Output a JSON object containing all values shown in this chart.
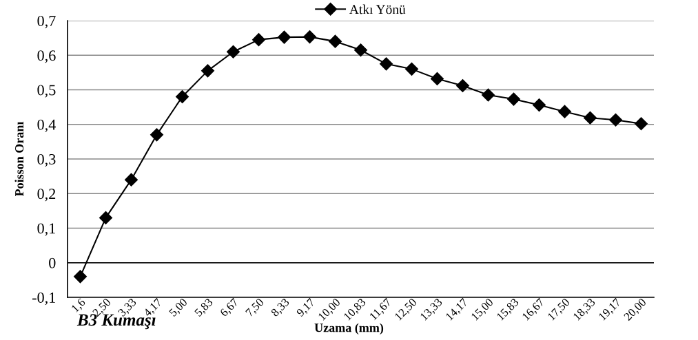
{
  "chart_data": {
    "type": "line",
    "categories": [
      "1,6",
      "2,50",
      "3,33",
      "4,17",
      "5,00",
      "5,83",
      "6,67",
      "7,50",
      "8,33",
      "9,17",
      "10,00",
      "10,83",
      "11,67",
      "12,50",
      "13,33",
      "14,17",
      "15,00",
      "15,83",
      "16,67",
      "17,50",
      "18,33",
      "19,17",
      "20,00"
    ],
    "series": [
      {
        "name": "Atkı Yönü",
        "color": "#000000",
        "values": [
          -0.04,
          0.13,
          0.24,
          0.37,
          0.48,
          0.555,
          0.61,
          0.645,
          0.652,
          0.653,
          0.64,
          0.615,
          0.575,
          0.56,
          0.532,
          0.512,
          0.485,
          0.473,
          0.456,
          0.437,
          0.419,
          0.413,
          0.402
        ]
      }
    ],
    "xlabel": "Uzama (mm)",
    "ylabel": "Poisson Oranı",
    "annotations": [
      "B3 Kumaşı"
    ],
    "ylim": [
      -0.1,
      0.7
    ],
    "yticks": [
      {
        "value": -0.1,
        "label": "-0,1"
      },
      {
        "value": 0,
        "label": "0"
      },
      {
        "value": 0.1,
        "label": "0,1"
      },
      {
        "value": 0.2,
        "label": "0,2"
      },
      {
        "value": 0.3,
        "label": "0,3"
      },
      {
        "value": 0.4,
        "label": "0,4"
      },
      {
        "value": 0.5,
        "label": "0,5"
      },
      {
        "value": 0.6,
        "label": "0,6"
      },
      {
        "value": 0.7,
        "label": "0,7"
      }
    ],
    "grid": "y",
    "legend": "top",
    "marker": "diamond",
    "line_style": "solid"
  }
}
